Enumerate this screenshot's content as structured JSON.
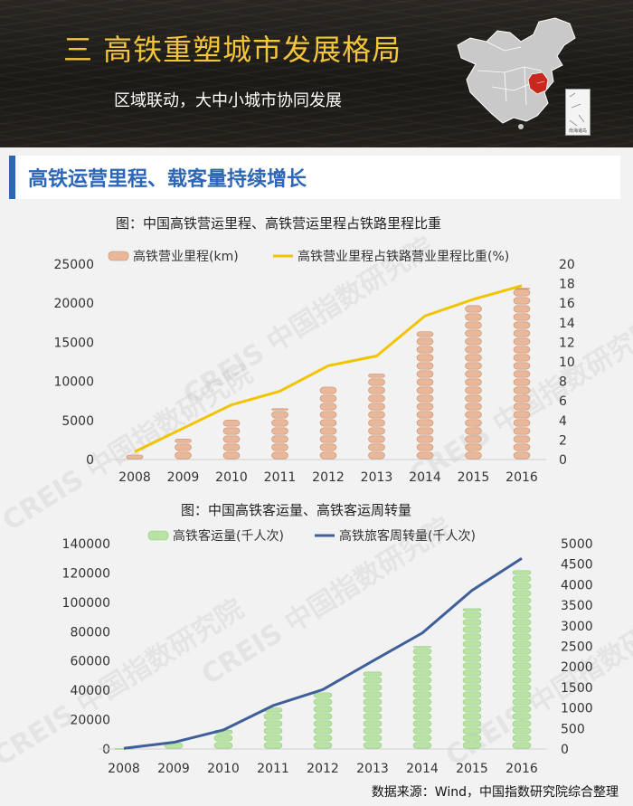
{
  "banner": {
    "title": "三 高铁重塑城市发展格局",
    "subtitle": "区域联动，大中小城市协同发展",
    "map_inset_label": "南海诸岛"
  },
  "section": {
    "title": "高铁运营里程、载客量持续增长"
  },
  "watermark_text": "CREIS 中国指数研究院",
  "source": "数据来源：Wind，中国指数研究院综合整理",
  "chart_data": [
    {
      "type": "bar",
      "title": "图：中国高铁营运里程、高铁营运里程占铁路里程比重",
      "categories": [
        "2008",
        "2009",
        "2010",
        "2011",
        "2012",
        "2013",
        "2014",
        "2015",
        "2016"
      ],
      "ylim": [
        0,
        25000
      ],
      "yticks": [
        "0",
        "5000",
        "10000",
        "15000",
        "20000",
        "25000"
      ],
      "y2lim": [
        0,
        20
      ],
      "y2ticks": [
        "0",
        "2",
        "4",
        "6",
        "8",
        "10",
        "12",
        "14",
        "16",
        "18",
        "20"
      ],
      "series": [
        {
          "name": "高铁营业里程(km)",
          "kind": "bar",
          "color": "#e9b799",
          "values": [
            672,
            2699,
            5133,
            6601,
            9356,
            11028,
            16456,
            19838,
            22000
          ]
        },
        {
          "name": "高铁营业里程占铁路营业里程比重(%)",
          "kind": "line",
          "axis": "right",
          "color": "#f2c400",
          "values": [
            0.8,
            3.2,
            5.6,
            7.0,
            9.6,
            10.6,
            14.7,
            16.4,
            17.8
          ]
        }
      ]
    },
    {
      "type": "bar",
      "title": "图：中国高铁客运量、高铁客运周转量",
      "categories": [
        "2008",
        "2009",
        "2010",
        "2011",
        "2012",
        "2013",
        "2014",
        "2015",
        "2016"
      ],
      "ylim": [
        0,
        140000
      ],
      "yticks": [
        "0",
        "20000",
        "40000",
        "60000",
        "80000",
        "100000",
        "120000",
        "140000"
      ],
      "y2lim": [
        0,
        5000
      ],
      "y2ticks": [
        "0",
        "500",
        "1000",
        "1500",
        "2000",
        "2500",
        "3000",
        "3500",
        "4000",
        "4500",
        "5000"
      ],
      "series": [
        {
          "name": "高铁客运量(千人次)",
          "kind": "bar",
          "color": "#b9e3a5",
          "values": [
            734,
            4651,
            13323,
            28552,
            38815,
            52962,
            70378,
            96139,
            122128
          ]
        },
        {
          "name": "高铁旅客周转量(千人次)",
          "kind": "line",
          "axis": "right",
          "color": "#3e5f9a",
          "values": [
            16,
            162,
            463,
            1058,
            1446,
            2141,
            2825,
            3863,
            4641
          ]
        }
      ]
    }
  ]
}
